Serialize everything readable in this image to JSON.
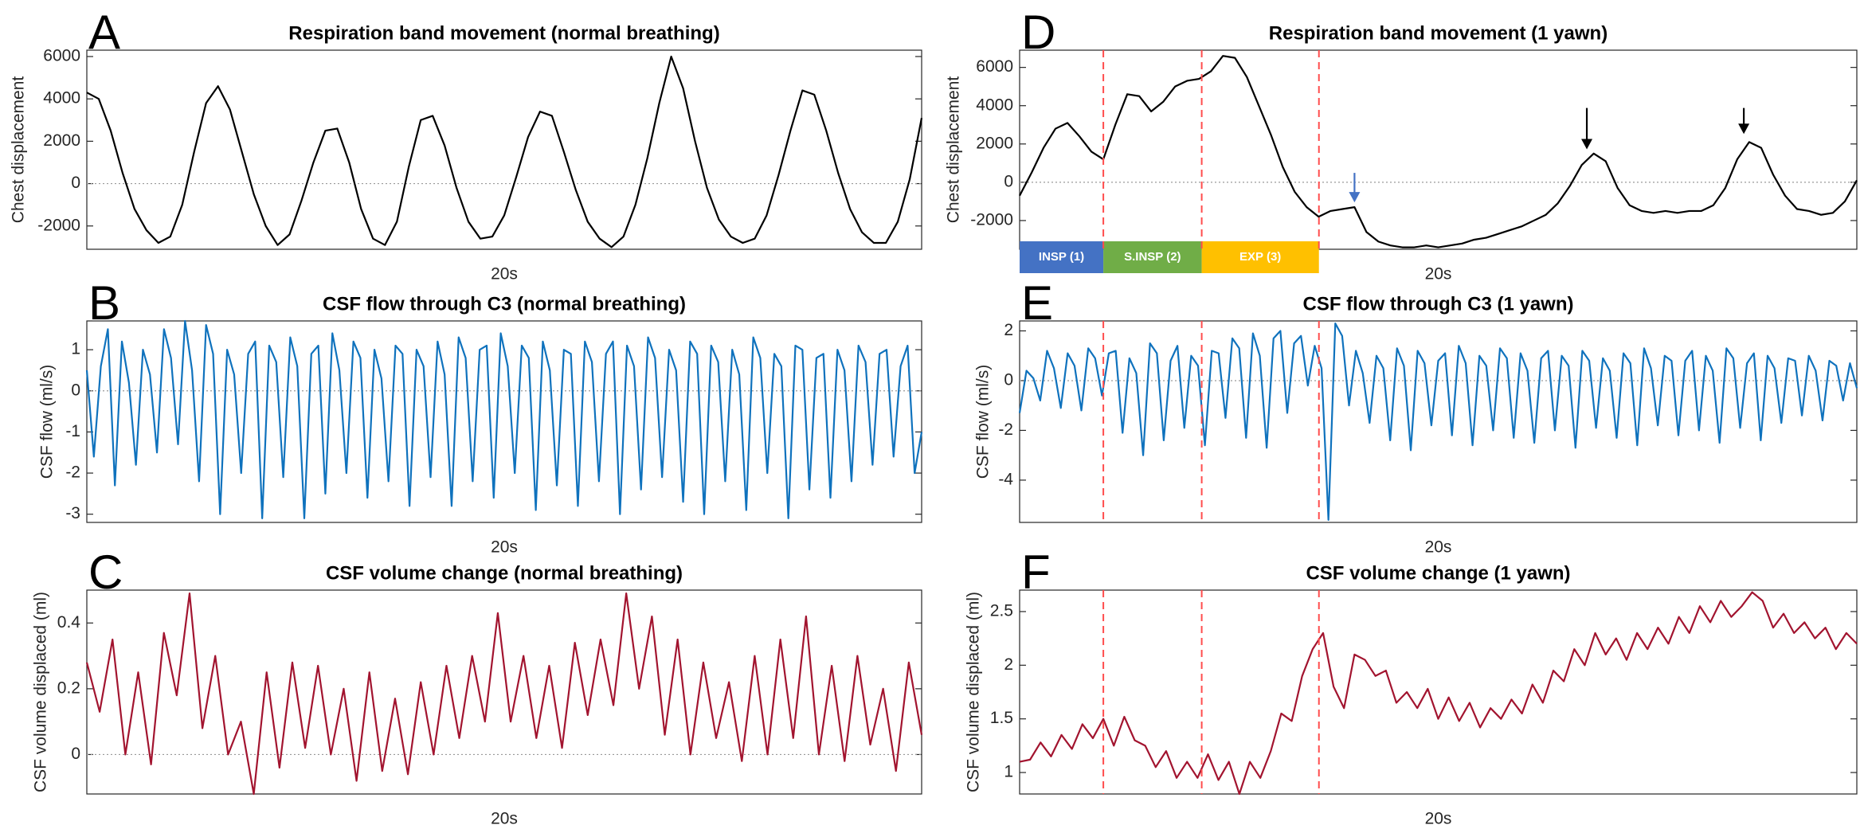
{
  "chart_data": [
    {
      "type": "line",
      "panel": "A",
      "title": "Respiration band movement (normal breathing)",
      "ylabel": "Chest displacement",
      "xlabel": "20s",
      "color": "#000000",
      "xlim": [
        0,
        40
      ],
      "ylim": [
        -3100,
        6300
      ],
      "yticks": [
        -2000,
        0,
        2000,
        4000,
        6000
      ],
      "refline": 0,
      "values": [
        4300,
        4000,
        2500,
        500,
        -1200,
        -2200,
        -2800,
        -2500,
        -1000,
        1500,
        3800,
        4600,
        3500,
        1500,
        -500,
        -2000,
        -2900,
        -2400,
        -800,
        1000,
        2500,
        2600,
        1000,
        -1200,
        -2600,
        -2900,
        -1800,
        800,
        3000,
        3200,
        1800,
        -200,
        -1800,
        -2600,
        -2500,
        -1500,
        300,
        2200,
        3400,
        3200,
        1500,
        -300,
        -1800,
        -2600,
        -3000,
        -2500,
        -1000,
        1200,
        3800,
        6000,
        4500,
        2000,
        -200,
        -1700,
        -2500,
        -2800,
        -2600,
        -1500,
        400,
        2500,
        4400,
        4200,
        2500,
        500,
        -1200,
        -2300,
        -2800,
        -2800,
        -1800,
        200,
        3100
      ]
    },
    {
      "type": "line",
      "panel": "B",
      "title": "CSF flow through C3 (normal breathing)",
      "ylabel": "CSF flow (ml/s)",
      "xlabel": "20s",
      "color": "#0f72bd",
      "xlim": [
        0,
        40
      ],
      "ylim": [
        -3.2,
        1.7
      ],
      "yticks": [
        -3,
        -2,
        -1,
        0,
        1
      ],
      "refline": 0,
      "values": [
        0.5,
        -1.6,
        0.6,
        1.5,
        -2.3,
        1.2,
        0.2,
        -1.8,
        1.0,
        0.4,
        -1.5,
        1.5,
        0.8,
        -1.3,
        1.7,
        0.5,
        -2.2,
        1.6,
        0.9,
        -3.0,
        1.0,
        0.4,
        -2.0,
        0.9,
        1.2,
        -3.1,
        1.1,
        0.7,
        -2.1,
        1.3,
        0.6,
        -3.1,
        0.9,
        1.1,
        -2.5,
        1.4,
        0.5,
        -2.0,
        1.2,
        0.8,
        -2.6,
        1.0,
        0.3,
        -2.2,
        1.1,
        0.9,
        -2.8,
        1.0,
        0.6,
        -2.1,
        1.2,
        0.4,
        -2.8,
        1.3,
        0.8,
        -2.2,
        1.0,
        1.1,
        -2.6,
        1.4,
        0.6,
        -2.0,
        1.1,
        0.8,
        -2.9,
        1.2,
        0.5,
        -2.3,
        1.0,
        0.9,
        -2.8,
        1.2,
        0.7,
        -2.2,
        0.9,
        1.2,
        -3.0,
        1.1,
        0.6,
        -2.4,
        1.3,
        0.8,
        -2.1,
        1.0,
        0.5,
        -2.7,
        1.2,
        0.9,
        -3.0,
        1.1,
        0.7,
        -2.2,
        1.0,
        0.4,
        -2.9,
        1.3,
        0.8,
        -2.0,
        0.9,
        0.6,
        -3.1,
        1.1,
        1.0,
        -2.4,
        0.8,
        0.9,
        -2.6,
        1.0,
        0.5,
        -2.2,
        1.1,
        0.7,
        -1.8,
        0.9,
        1.0,
        -1.6,
        0.6,
        1.1,
        -2.0,
        -1.0
      ]
    },
    {
      "type": "line",
      "panel": "C",
      "title": "CSF volume change (normal breathing)",
      "ylabel": "CSF volume displaced (ml)",
      "xlabel": "20s",
      "color": "#a2142f",
      "xlim": [
        0,
        40
      ],
      "ylim": [
        -0.12,
        0.5
      ],
      "yticks": [
        0,
        0.2,
        0.4
      ],
      "refline": 0,
      "values": [
        0.28,
        0.13,
        0.35,
        0.0,
        0.25,
        -0.03,
        0.37,
        0.18,
        0.49,
        0.08,
        0.3,
        0.0,
        0.1,
        -0.12,
        0.25,
        -0.04,
        0.28,
        0.02,
        0.27,
        0.0,
        0.2,
        -0.08,
        0.25,
        -0.05,
        0.17,
        -0.06,
        0.22,
        0.0,
        0.27,
        0.05,
        0.3,
        0.1,
        0.43,
        0.1,
        0.3,
        0.05,
        0.27,
        0.02,
        0.34,
        0.12,
        0.35,
        0.15,
        0.49,
        0.2,
        0.42,
        0.06,
        0.35,
        0.0,
        0.28,
        0.05,
        0.22,
        -0.02,
        0.3,
        0.0,
        0.35,
        0.05,
        0.42,
        0.0,
        0.27,
        -0.02,
        0.3,
        0.03,
        0.2,
        -0.05,
        0.28,
        0.06
      ]
    },
    {
      "type": "line",
      "panel": "D",
      "title": "Respiration band movement (1 yawn)",
      "ylabel": "Chest displacement",
      "xlabel": "20s",
      "color": "#000000",
      "xlim": [
        0,
        40
      ],
      "ylim": [
        -3500,
        6900
      ],
      "yticks": [
        -2000,
        0,
        2000,
        4000,
        6000
      ],
      "refline": 0,
      "vlines": [
        4.0,
        8.7,
        14.3
      ],
      "phases": [
        {
          "label": "INSP (1)",
          "color": "#4472c4",
          "start": 0,
          "end": 4.0
        },
        {
          "label": "S.INSP (2)",
          "color": "#70ad47",
          "start": 4.0,
          "end": 8.7
        },
        {
          "label": "EXP (3)",
          "color": "#ffc000",
          "start": 8.7,
          "end": 14.3
        }
      ],
      "arrows": [
        {
          "x": 16.0,
          "y_from": 490,
          "y_to": -1050,
          "color": "#4472c4"
        },
        {
          "x": 27.1,
          "y_from": 3880,
          "y_to": 1720,
          "color": "#000000"
        },
        {
          "x": 34.6,
          "y_from": 3880,
          "y_to": 2520,
          "color": "#000000"
        }
      ],
      "values": [
        -700,
        500,
        1800,
        2800,
        3100,
        2400,
        1600,
        1200,
        3000,
        4600,
        4500,
        3700,
        4200,
        5000,
        5300,
        5400,
        5800,
        6600,
        6500,
        5500,
        4000,
        2500,
        800,
        -500,
        -1300,
        -1800,
        -1500,
        -1400,
        -1300,
        -2600,
        -3100,
        -3300,
        -3400,
        -3400,
        -3300,
        -3400,
        -3300,
        -3200,
        -3000,
        -2900,
        -2700,
        -2500,
        -2300,
        -2000,
        -1700,
        -1100,
        -200,
        900,
        1500,
        1100,
        -300,
        -1200,
        -1500,
        -1600,
        -1500,
        -1600,
        -1500,
        -1500,
        -1200,
        -300,
        1200,
        2100,
        1800,
        400,
        -700,
        -1400,
        -1500,
        -1700,
        -1600,
        -1000,
        100
      ]
    },
    {
      "type": "line",
      "panel": "E",
      "title": "CSF flow through C3 (1 yawn)",
      "ylabel": "CSF flow (ml/s)",
      "xlabel": "20s",
      "color": "#0f72bd",
      "xlim": [
        0,
        40
      ],
      "ylim": [
        -5.7,
        2.4
      ],
      "yticks": [
        -4,
        -2,
        0,
        2
      ],
      "refline": 0,
      "vlines": [
        4.0,
        8.7,
        14.3
      ],
      "values": [
        -1.3,
        0.4,
        0.1,
        -0.8,
        1.2,
        0.5,
        -1.1,
        1.1,
        0.6,
        -1.2,
        1.3,
        0.9,
        -0.6,
        1.1,
        1.2,
        -2.1,
        0.9,
        0.3,
        -3.0,
        1.5,
        1.1,
        -2.4,
        0.8,
        1.4,
        -1.9,
        1.0,
        0.6,
        -2.6,
        1.2,
        1.1,
        -1.5,
        1.7,
        1.3,
        -2.3,
        1.9,
        1.0,
        -2.7,
        1.7,
        2.0,
        -1.3,
        1.5,
        1.8,
        -0.2,
        1.4,
        0.5,
        -5.6,
        2.3,
        1.8,
        -1.0,
        1.2,
        0.3,
        -1.7,
        1.0,
        0.5,
        -2.4,
        1.3,
        0.6,
        -2.8,
        1.2,
        0.7,
        -1.8,
        0.8,
        1.1,
        -2.2,
        1.4,
        0.7,
        -2.6,
        1.0,
        0.6,
        -2.0,
        1.3,
        0.9,
        -2.3,
        1.1,
        0.4,
        -2.5,
        0.9,
        1.2,
        -2.0,
        1.0,
        0.6,
        -2.7,
        1.2,
        0.8,
        -1.9,
        0.9,
        0.4,
        -2.3,
        1.1,
        0.7,
        -2.6,
        1.3,
        0.5,
        -1.8,
        1.0,
        0.8,
        -2.2,
        0.8,
        1.2,
        -2.0,
        1.0,
        0.4,
        -2.5,
        1.3,
        0.9,
        -1.9,
        0.7,
        1.1,
        -2.4,
        1.0,
        0.5,
        -1.7,
        0.9,
        0.8,
        -1.4,
        1.0,
        0.4,
        -1.6,
        0.8,
        0.6,
        -0.8,
        0.7,
        -0.3
      ]
    },
    {
      "type": "line",
      "panel": "F",
      "title": "CSF volume change (1 yawn)",
      "ylabel": "CSF volume displaced (ml)",
      "xlabel": "20s",
      "color": "#a2142f",
      "xlim": [
        0,
        40
      ],
      "ylim": [
        0.8,
        2.7
      ],
      "yticks": [
        1,
        1.5,
        2,
        2.5
      ],
      "vlines": [
        4.0,
        8.7,
        14.3
      ],
      "values": [
        1.1,
        1.12,
        1.28,
        1.15,
        1.35,
        1.22,
        1.45,
        1.32,
        1.5,
        1.25,
        1.52,
        1.3,
        1.25,
        1.05,
        1.2,
        0.95,
        1.1,
        0.95,
        1.17,
        0.93,
        1.1,
        0.8,
        1.1,
        0.95,
        1.2,
        1.55,
        1.48,
        1.9,
        2.15,
        2.3,
        1.8,
        1.6,
        2.1,
        2.05,
        1.9,
        1.95,
        1.65,
        1.75,
        1.6,
        1.78,
        1.5,
        1.7,
        1.48,
        1.65,
        1.42,
        1.6,
        1.5,
        1.68,
        1.55,
        1.82,
        1.65,
        1.95,
        1.85,
        2.15,
        2.0,
        2.3,
        2.1,
        2.25,
        2.05,
        2.3,
        2.15,
        2.35,
        2.2,
        2.45,
        2.3,
        2.55,
        2.4,
        2.6,
        2.45,
        2.55,
        2.68,
        2.6,
        2.35,
        2.48,
        2.3,
        2.4,
        2.25,
        2.35,
        2.15,
        2.3,
        2.2
      ]
    }
  ]
}
